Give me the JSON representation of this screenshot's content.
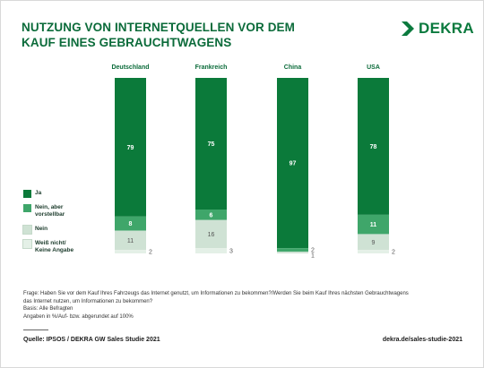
{
  "title_line1": "NUTZUNG VON INTERNETQUELLEN VOR DEM",
  "title_line2": "KAUF EINES GEBRAUCHTWAGENS",
  "brand": "DEKRA",
  "chart_data": {
    "type": "bar",
    "stacked": true,
    "categories": [
      "Deutschland",
      "Frankreich",
      "China",
      "USA"
    ],
    "series": [
      {
        "name": "Ja",
        "color": "#0b7a3a",
        "values": [
          79,
          75,
          97,
          78
        ]
      },
      {
        "name": "Nein, aber vorstellbar",
        "color": "#3fa66a",
        "values": [
          8,
          6,
          2,
          11
        ]
      },
      {
        "name": "Nein",
        "color": "#cfe2d4",
        "values": [
          11,
          16,
          1,
          9
        ]
      },
      {
        "name": "Weiß nicht/ Keine Angabe",
        "color": "#e4f0e7",
        "values": [
          2,
          3,
          0,
          2
        ]
      }
    ],
    "ylim": [
      0,
      100
    ],
    "grid": false,
    "legend": "left"
  },
  "legend_lines": [
    [
      "Ja"
    ],
    [
      "Nein, aber",
      "vorstellbar"
    ],
    [
      "Nein"
    ],
    [
      "Weiß nicht/",
      "Keine Angabe"
    ]
  ],
  "notes": [
    "Frage: Haben Sie vor dem Kauf Ihres Fahrzeugs das Internet genutzt, um Informationen zu bekommen?/Werden Sie beim Kauf Ihres nächsten Gebrauchtwagens",
    "das Internet nutzen, um Informationen zu bekommen?",
    "Basis: Alle Befragten",
    "Angaben in %/Auf- bzw. abgerundet auf 100%"
  ],
  "source": "Quelle: IPSOS / DEKRA GW Sales Studie 2021",
  "url": "dekra.de/sales-studie-2021"
}
